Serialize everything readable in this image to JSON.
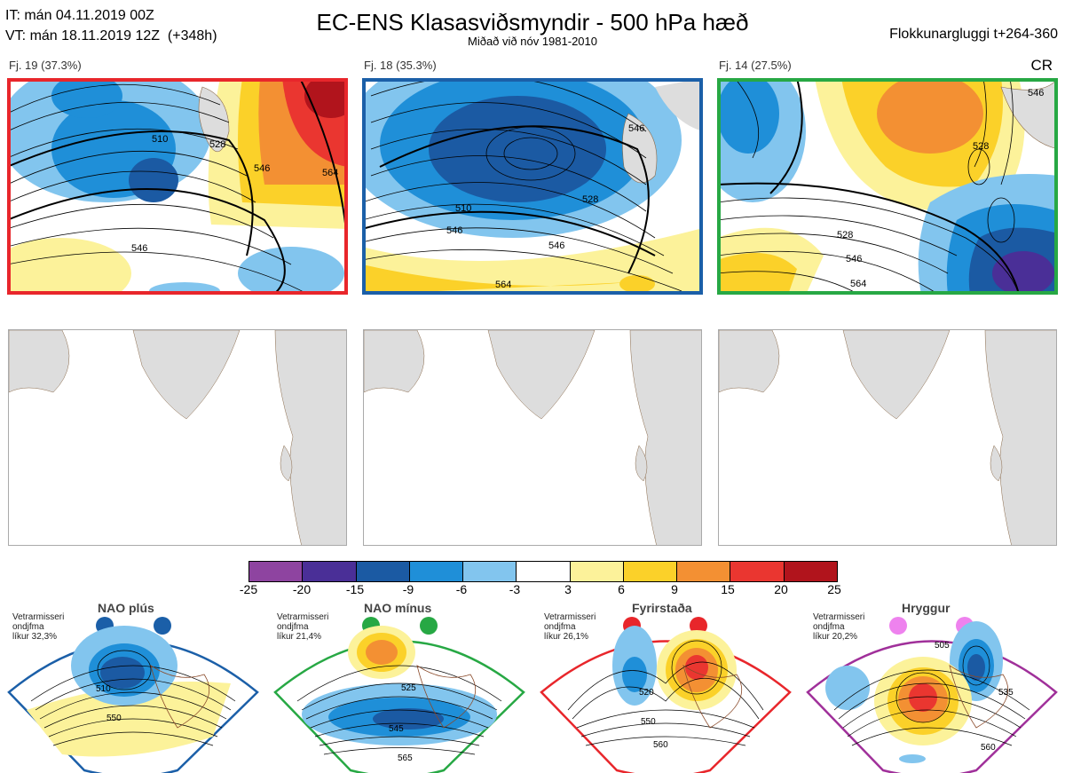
{
  "header": {
    "it_line": "IT: mán 04.11.2019 00Z",
    "vt_line": "VT: mán 18.11.2019 12Z  (+348h)",
    "title": "EC-ENS Klasasviðsmyndir - 500 hPa hæð",
    "subtitle": "Miðað við nóv 1981-2010",
    "window": "Flokkunargluggi t+264-360",
    "code": "CR"
  },
  "panels": [
    {
      "label": "Fj. 19 (37.3%)",
      "border_color": "#e8262b",
      "contour_labels": [
        "510",
        "528",
        "546",
        "546",
        "564"
      ]
    },
    {
      "label": "Fj. 18 (35.3%)",
      "border_color": "#1b5fa8",
      "contour_labels": [
        "510",
        "528",
        "546",
        "546",
        "564",
        "546"
      ]
    },
    {
      "label": "Fj. 14 (27.5%)",
      "border_color": "#27a844",
      "contour_labels": [
        "528",
        "528",
        "546",
        "564",
        "546"
      ]
    }
  ],
  "colorbar": {
    "ticks": [
      "-25",
      "-20",
      "-15",
      "-9",
      "-6",
      "-3",
      "3",
      "6",
      "9",
      "15",
      "20",
      "25"
    ],
    "colors": [
      "#8e44a0",
      "#4a2f97",
      "#1b5aa3",
      "#1f8fd8",
      "#82c5ee",
      "#ffffff",
      "#fcf29a",
      "#fbd129",
      "#f39033",
      "#ea3630",
      "#b1141c"
    ]
  },
  "regimes": [
    {
      "name": "NAO plús",
      "note_lines": [
        "Vetrarmisseri",
        "ondjfma",
        "líkur 32,3%"
      ],
      "color": "#1b5fa8",
      "contour_labels": [
        "510",
        "550"
      ]
    },
    {
      "name": "NAO mínus",
      "note_lines": [
        "Vetrarmisseri",
        "ondjfma",
        "líkur 21,4%"
      ],
      "color": "#27a844",
      "contour_labels": [
        "525",
        "545",
        "565"
      ]
    },
    {
      "name": "Fyrirstaða",
      "note_lines": [
        "Vetrarmisseri",
        "ondjfma",
        "líkur 26,1%"
      ],
      "color": "#e8262b",
      "contour_labels": [
        "520",
        "550",
        "560"
      ]
    },
    {
      "name": "Hryggur",
      "note_lines": [
        "Vetrarmisseri",
        "ondjfma",
        "líkur 20,2%"
      ],
      "color": "#a0309a",
      "contour_labels": [
        "505",
        "535",
        "560"
      ]
    }
  ]
}
